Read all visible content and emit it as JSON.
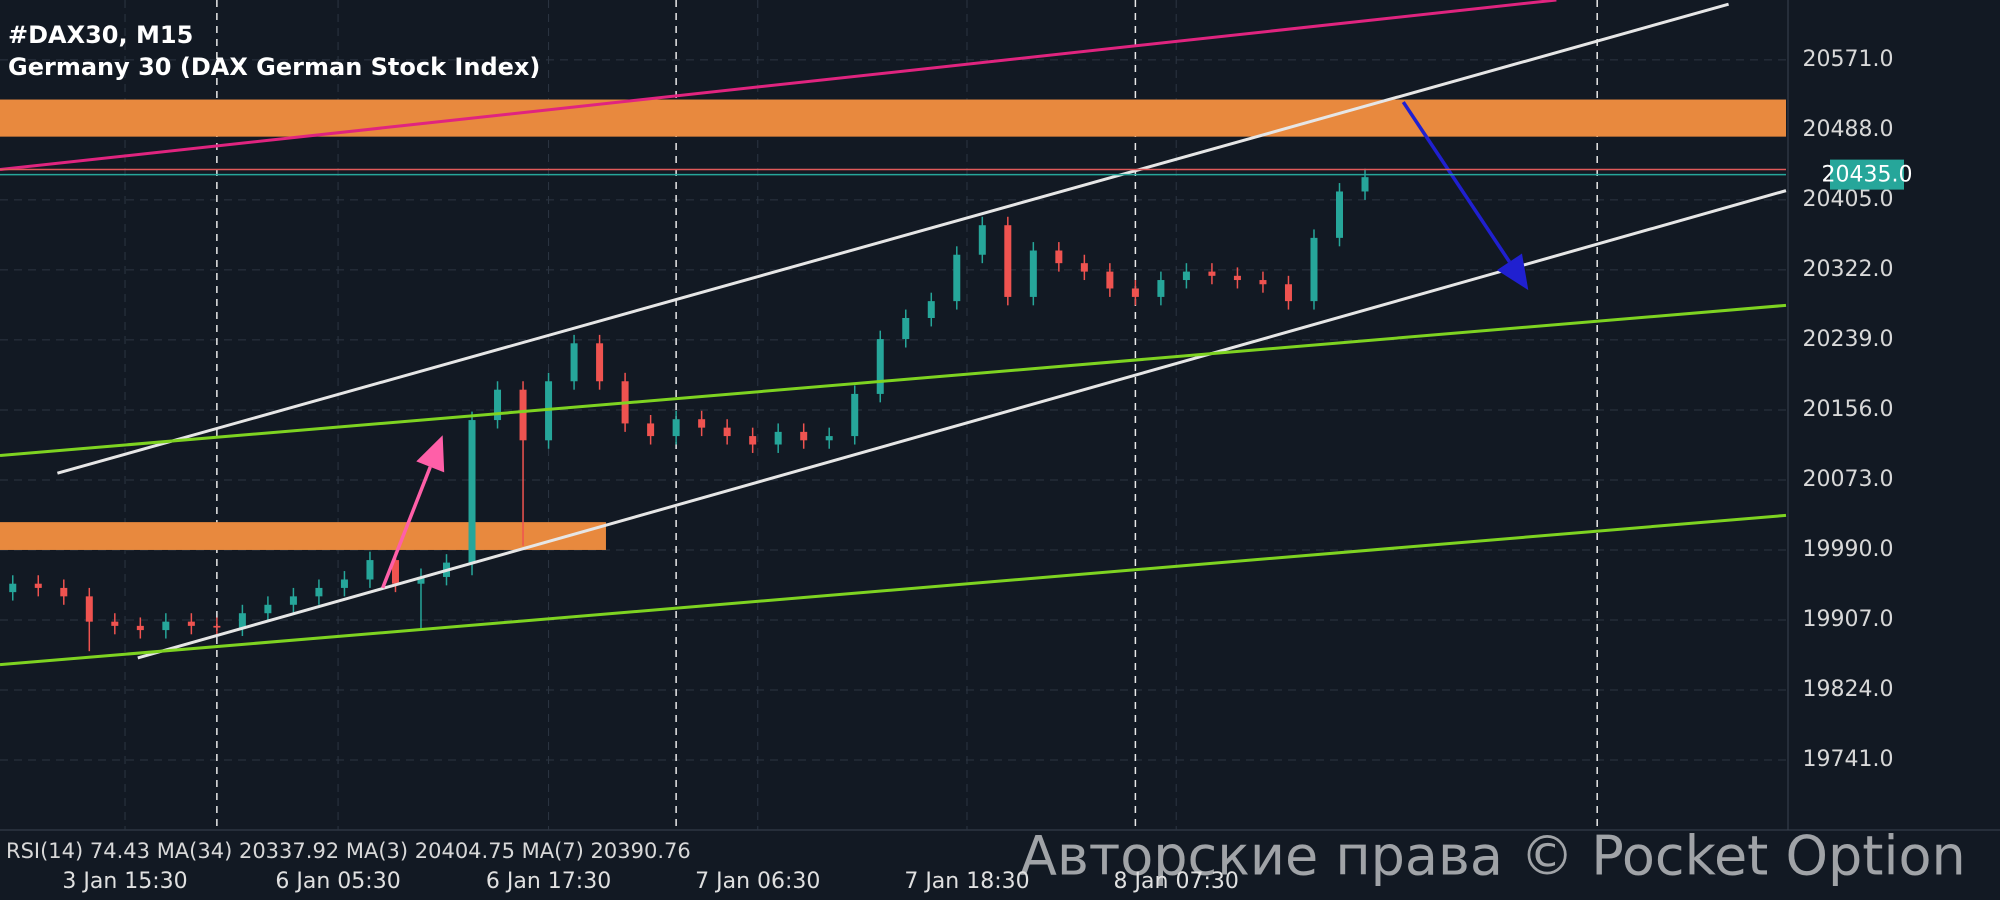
{
  "chart_data": {
    "type": "candlestick",
    "title": "#DAX30, M15",
    "subtitle": "Germany 30 (DAX German Stock Index)",
    "indicator_text": "RSI(14) 74.43 MA(34) 20337.92 MA(3) 20404.75 MA(7) 20390.76",
    "watermark": "Авторские права © Pocket Option",
    "up_color": "#26a69a",
    "down_color": "#ef5350",
    "grid": true,
    "xlim": [
      0,
      140
    ],
    "ylim": [
      19658,
      20642
    ],
    "yticks": [
      {
        "value": 19741,
        "label": "19741.0"
      },
      {
        "value": 19824,
        "label": "19824.0"
      },
      {
        "value": 19907,
        "label": "19907.0"
      },
      {
        "value": 19990,
        "label": "19990.0"
      },
      {
        "value": 20073,
        "label": "20073.0"
      },
      {
        "value": 20156,
        "label": "20156.0"
      },
      {
        "value": 20239,
        "label": "20239.0"
      },
      {
        "value": 20322,
        "label": "20322.0"
      },
      {
        "value": 20405,
        "label": "20405.0"
      },
      {
        "value": 20488,
        "label": "20488.0"
      },
      {
        "value": 20571,
        "label": "20571.0"
      }
    ],
    "xticks": [
      {
        "value": 9.8,
        "label": "3 Jan 15:30"
      },
      {
        "value": 26.5,
        "label": "6 Jan 05:30"
      },
      {
        "value": 43,
        "label": "6 Jan 17:30"
      },
      {
        "value": 59.4,
        "label": "7 Jan 06:30"
      },
      {
        "value": 75.8,
        "label": "7 Jan 18:30"
      },
      {
        "value": 92.2,
        "label": "8 Jan 07:30"
      }
    ],
    "separators": [
      17,
      53,
      89,
      125.2
    ],
    "x": [
      1,
      3,
      5,
      7,
      9,
      11,
      13,
      15,
      17,
      19,
      21,
      23,
      25,
      27,
      29,
      31,
      33,
      35,
      37,
      39,
      41,
      43,
      45,
      47,
      49,
      51,
      53,
      55,
      57,
      59,
      61,
      63,
      65,
      67,
      69,
      71,
      73,
      75,
      77,
      79,
      81,
      83,
      85,
      87,
      89,
      91,
      93,
      95,
      97,
      99,
      101,
      103,
      105,
      107
    ],
    "open": [
      19940,
      19950,
      19945,
      19935,
      19905,
      19900,
      19895,
      19905,
      19900,
      19898,
      19915,
      19925,
      19935,
      19945,
      19955,
      19978,
      19950,
      19958,
      19975,
      20144,
      20180,
      20120,
      20190,
      20235,
      20190,
      20140,
      20125,
      20145,
      20135,
      20125,
      20115,
      20130,
      20120,
      20125,
      20175,
      20240,
      20265,
      20285,
      20340,
      20375,
      20290,
      20345,
      20330,
      20320,
      20300,
      20290,
      20310,
      20320,
      20315,
      20310,
      20305,
      20285,
      20360,
      20415
    ],
    "high": [
      19960,
      19960,
      19955,
      19945,
      19915,
      19910,
      19915,
      19915,
      19910,
      19925,
      19935,
      19945,
      19955,
      19965,
      19988,
      19988,
      19968,
      19985,
      20154,
      20190,
      20190,
      20200,
      20245,
      20245,
      20200,
      20150,
      20155,
      20155,
      20145,
      20135,
      20140,
      20140,
      20135,
      20185,
      20250,
      20275,
      20295,
      20350,
      20385,
      20385,
      20355,
      20355,
      20340,
      20330,
      20310,
      20320,
      20330,
      20330,
      20325,
      20320,
      20315,
      20370,
      20425,
      20442
    ],
    "low": [
      19930,
      19935,
      19925,
      19870,
      19890,
      19885,
      19885,
      19890,
      19888,
      19888,
      19905,
      19915,
      19925,
      19935,
      19945,
      19940,
      19895,
      19948,
      19960,
      20134,
      19995,
      20110,
      20180,
      20180,
      20130,
      20115,
      20115,
      20125,
      20115,
      20105,
      20105,
      20110,
      20110,
      20115,
      20165,
      20230,
      20255,
      20275,
      20330,
      20280,
      20280,
      20320,
      20310,
      20290,
      20280,
      20280,
      20300,
      20305,
      20300,
      20295,
      20275,
      20275,
      20350,
      20405
    ],
    "close": [
      19950,
      19945,
      19935,
      19905,
      19900,
      19895,
      19905,
      19900,
      19898,
      19915,
      19925,
      19935,
      19945,
      19955,
      19978,
      19950,
      19958,
      19975,
      20144,
      20180,
      20120,
      20190,
      20235,
      20190,
      20140,
      20125,
      20145,
      20135,
      20125,
      20115,
      20130,
      20120,
      20125,
      20175,
      20240,
      20265,
      20285,
      20340,
      20375,
      20290,
      20345,
      20330,
      20320,
      20300,
      20290,
      20310,
      20320,
      20315,
      20310,
      20305,
      20285,
      20360,
      20415,
      20432
    ],
    "zones": [
      {
        "color": "#e8893e",
        "x": [
          0,
          140
        ],
        "y": [
          20480,
          20524
        ]
      },
      {
        "color": "#e8893e",
        "x": [
          0,
          47.5
        ],
        "y": [
          19990,
          20023
        ]
      }
    ],
    "trendlines": [
      {
        "color": "#e0247f",
        "x": [
          0,
          122
        ],
        "y": [
          20441,
          20642
        ]
      },
      {
        "color": "#e6e6e6",
        "x": [
          4.5,
          135.5
        ],
        "y": [
          20081,
          20637
        ]
      },
      {
        "color": "#e6e6e6",
        "x": [
          10.8,
          140
        ],
        "y": [
          19862,
          20416
        ]
      },
      {
        "color": "#7ed321",
        "x": [
          0,
          140
        ],
        "y": [
          20102,
          20280
        ]
      },
      {
        "color": "#7ed321",
        "x": [
          0,
          140
        ],
        "y": [
          19854,
          20031
        ]
      }
    ],
    "arrows": [
      {
        "color": "#ff5fa8",
        "x": [
          30,
          34.7
        ],
        "y": [
          19945,
          20126
        ]
      },
      {
        "color": "#2020d0",
        "x": [
          110,
          119.8
        ],
        "y": [
          20521,
          20298
        ]
      }
    ],
    "ask_line": {
      "color": "#e05a5a",
      "value": 20441
    },
    "price_line": {
      "color": "#26a69a",
      "value": 20435,
      "label": "20435.0"
    }
  }
}
